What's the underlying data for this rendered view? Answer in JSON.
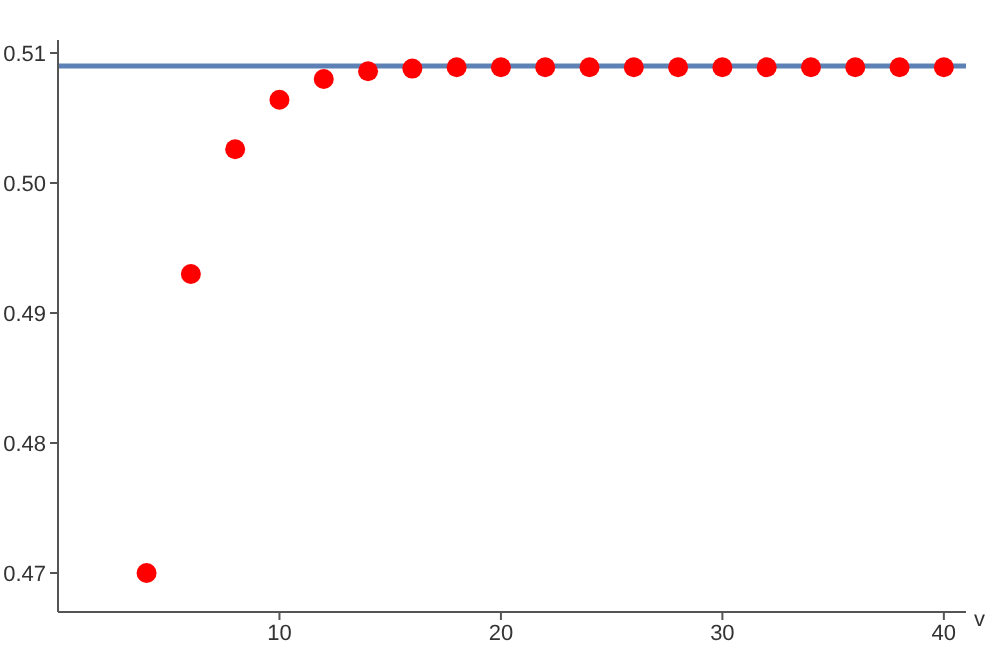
{
  "chart_data": {
    "type": "scatter",
    "xlabel": "v",
    "x": [
      4,
      6,
      8,
      10,
      12,
      14,
      16,
      18,
      20,
      22,
      24,
      26,
      28,
      30,
      32,
      34,
      36,
      38,
      40
    ],
    "series": [
      {
        "color": "#ff0000",
        "values": [
          0.47,
          0.493,
          0.5026,
          0.5064,
          0.508,
          0.5086,
          0.5088,
          0.5089,
          0.5089,
          0.5089,
          0.5089,
          0.5089,
          0.5089,
          0.5089,
          0.5089,
          0.5089,
          0.5089,
          0.5089,
          0.5089
        ]
      }
    ],
    "xlim": [
      0,
      41
    ],
    "xticks": [
      10,
      20,
      30,
      40
    ],
    "ylim": [
      0.467,
      0.511
    ],
    "yticks": [
      0.47,
      0.48,
      0.49,
      {
        "value": 0.5,
        "label": "0.50"
      },
      0.51
    ],
    "ref_lines": [
      {
        "axis": "y",
        "value": 0.509,
        "color": "#5e81b5"
      }
    ],
    "marker": "circle",
    "grid": false
  }
}
